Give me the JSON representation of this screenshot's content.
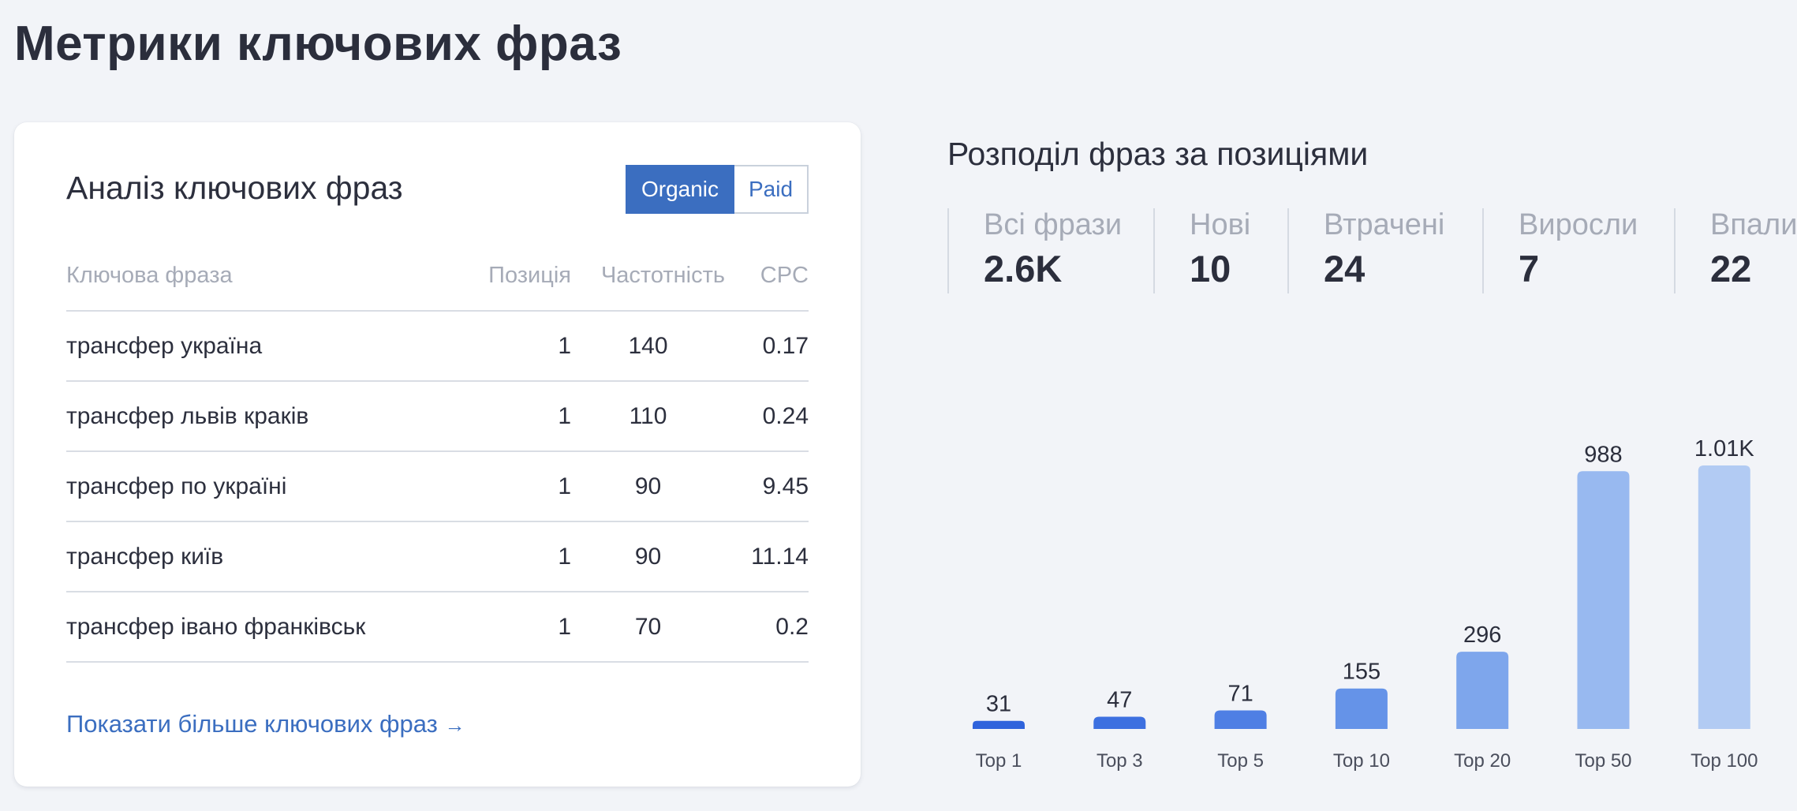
{
  "page": {
    "title": "Метрики ключових фраз"
  },
  "keywords_card": {
    "title": "Аналіз ключових фраз",
    "toggle": {
      "organic": "Organic",
      "paid": "Paid",
      "selected": "Organic"
    },
    "columns": {
      "keyword": "Ключова фраза",
      "position": "Позиція",
      "frequency": "Частотність",
      "cpc": "CPC"
    },
    "rows": [
      {
        "keyword": "трансфер україна",
        "position": "1",
        "frequency": "140",
        "cpc": "0.17"
      },
      {
        "keyword": "трансфер львів краків",
        "position": "1",
        "frequency": "110",
        "cpc": "0.24"
      },
      {
        "keyword": "трансфер по україні",
        "position": "1",
        "frequency": "90",
        "cpc": "9.45"
      },
      {
        "keyword": "трансфер київ",
        "position": "1",
        "frequency": "90",
        "cpc": "11.14"
      },
      {
        "keyword": "трансфер івано франківськ",
        "position": "1",
        "frequency": "70",
        "cpc": "0.2"
      }
    ],
    "more_link": "Показати більше ключових фраз",
    "more_arrow": "→"
  },
  "distribution": {
    "title": "Розподіл фраз за позиціями",
    "stats": [
      {
        "label": "Всі фрази",
        "value": "2.6K"
      },
      {
        "label": "Нові",
        "value": "10"
      },
      {
        "label": "Втрачені",
        "value": "24"
      },
      {
        "label": "Виросли",
        "value": "7"
      },
      {
        "label": "Впали",
        "value": "22"
      }
    ]
  },
  "chart_data": {
    "type": "bar",
    "title": "",
    "xlabel": "",
    "ylabel": "",
    "categories": [
      "Top 1",
      "Top 3",
      "Top 5",
      "Top 10",
      "Top 20",
      "Top 50",
      "Top 100"
    ],
    "values": [
      31,
      47,
      71,
      155,
      296,
      988,
      1010
    ],
    "data_labels": [
      "31",
      "47",
      "71",
      "155",
      "296",
      "988",
      "1.01K"
    ],
    "colors": [
      "#2f63dc",
      "#3d70e0",
      "#4f7fe4",
      "#6593e8",
      "#7ea6ec",
      "#98b9f0",
      "#b2cbf3"
    ],
    "ylim": [
      0,
      1010
    ],
    "grid": false
  }
}
